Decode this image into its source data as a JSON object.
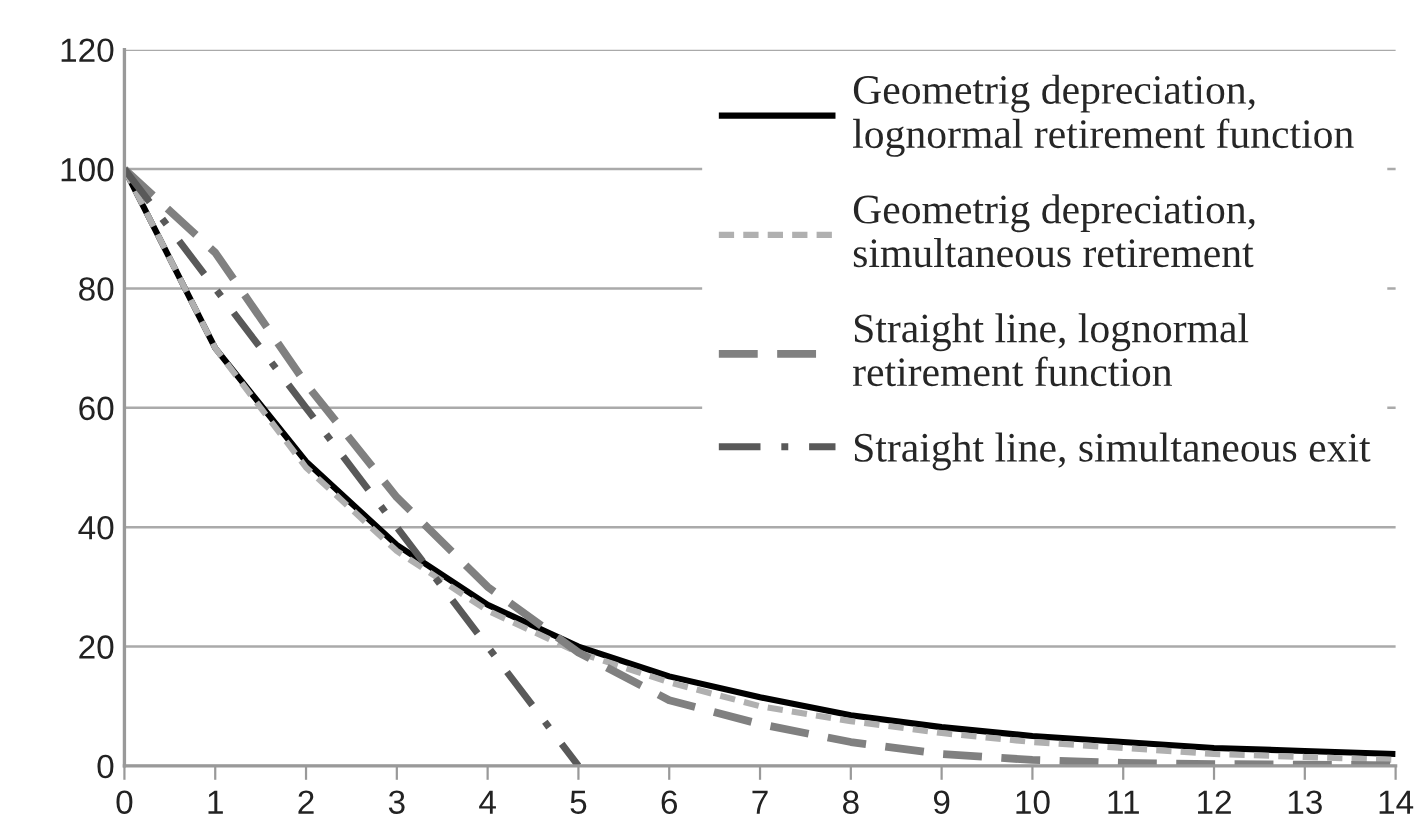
{
  "chart_data": {
    "type": "line",
    "x": [
      0,
      1,
      2,
      3,
      4,
      5,
      6,
      7,
      8,
      9,
      10,
      11,
      12,
      13,
      14
    ],
    "series": [
      {
        "name": "Geometrig depreciation,\nlognormal retirement function",
        "color": "#000000",
        "line_style": "solid",
        "values": [
          100,
          70,
          51,
          37,
          27,
          20,
          15,
          11.5,
          8.5,
          6.5,
          5,
          4,
          3,
          2.5,
          2
        ]
      },
      {
        "name": "Geometrig depreciation,\nsimultaneous retirement",
        "color": "#b0b0b0",
        "line_style": "dashed",
        "values": [
          100,
          70,
          50,
          36,
          26,
          19,
          14,
          10,
          7.5,
          5.5,
          4,
          3,
          2,
          1.5,
          1
        ]
      },
      {
        "name": "Straight line, lognormal\nretirement function",
        "color": "#808080",
        "line_style": "longdash",
        "values": [
          100,
          86,
          64,
          45,
          30,
          19,
          11,
          7,
          4,
          2,
          1,
          0.5,
          0.3,
          0.2,
          0.1
        ]
      },
      {
        "name": "Straight line, simultaneous exit",
        "color": "#595959",
        "line_style": "dashdot",
        "values": [
          100,
          80,
          60,
          40,
          20,
          0,
          null,
          null,
          null,
          null,
          null,
          null,
          null,
          null,
          null
        ]
      }
    ],
    "xlim": [
      0,
      14
    ],
    "xticks": [
      0,
      1,
      2,
      3,
      4,
      5,
      6,
      7,
      8,
      9,
      10,
      11,
      12,
      13,
      14
    ],
    "ylim": [
      0,
      120
    ],
    "yticks": [
      0,
      20,
      40,
      60,
      80,
      100,
      120
    ],
    "grid": "y",
    "legend": "top right"
  }
}
